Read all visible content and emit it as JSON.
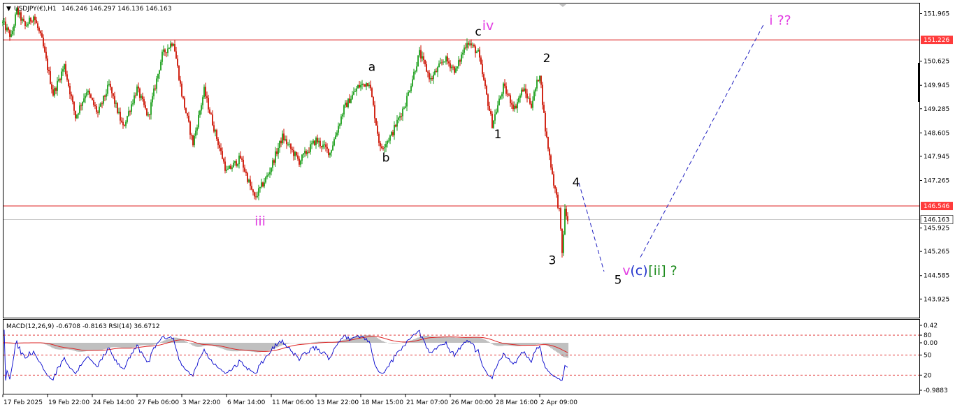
{
  "header": {
    "symbol_line": "USDJPY(€),H1",
    "ohlc": "146.246 146.297 146.136 146.163"
  },
  "indicator_header": "MACD(12,26,9) -0.6708 -0.8163 RSI(14) 36.6712",
  "colors": {
    "bull": "#1a9e1a",
    "bear": "#cc1100",
    "level_line": "#dd2222",
    "level_tag_bg": "#ff3b3b",
    "current_tag_bg": "#ffffff",
    "projection": "#1f1fc0",
    "label_magenta": "#e23de2",
    "label_black": "#000000",
    "label_blue": "#2233cc",
    "label_green": "#1e8b1e",
    "macd_hist": "#c0c0c0",
    "macd_signal": "#dd2222",
    "rsi_line": "#0000cc"
  },
  "chart_data": {
    "type": "candlestick",
    "symbol": "USDJPY",
    "timeframe": "H1",
    "price_axis": {
      "range": [
        143.4,
        152.25
      ],
      "ticks": [
        "151.965",
        "150.625",
        "149.945",
        "149.285",
        "148.605",
        "147.945",
        "147.265",
        "145.925",
        "145.265",
        "144.585",
        "143.925"
      ]
    },
    "time_axis": {
      "ticks": [
        "17 Feb 2025",
        "19 Feb 22:00",
        "24 Feb 14:00",
        "27 Feb 06:00",
        "3 Mar 22:00",
        "6 Mar 14:00",
        "11 Mar 06:00",
        "13 Mar 22:00",
        "18 Mar 15:00",
        "21 Mar 07:00",
        "26 Mar 00:00",
        "28 Mar 16:00",
        "2 Apr 09:00"
      ]
    },
    "price_path": [
      {
        "t": 0,
        "p": 151.7
      },
      {
        "t": 3,
        "p": 151.3
      },
      {
        "t": 5,
        "p": 152.05
      },
      {
        "t": 8,
        "p": 151.6
      },
      {
        "t": 11,
        "p": 151.9
      },
      {
        "t": 14,
        "p": 151.2
      },
      {
        "t": 18,
        "p": 149.7
      },
      {
        "t": 22,
        "p": 150.5
      },
      {
        "t": 26,
        "p": 149.05
      },
      {
        "t": 30,
        "p": 149.8
      },
      {
        "t": 34,
        "p": 149.15
      },
      {
        "t": 38,
        "p": 149.95
      },
      {
        "t": 43,
        "p": 148.75
      },
      {
        "t": 48,
        "p": 149.85
      },
      {
        "t": 52,
        "p": 149.05
      },
      {
        "t": 57,
        "p": 150.8
      },
      {
        "t": 61,
        "p": 151.2
      },
      {
        "t": 64,
        "p": 149.7
      },
      {
        "t": 68,
        "p": 148.3
      },
      {
        "t": 72,
        "p": 149.8
      },
      {
        "t": 76,
        "p": 148.6
      },
      {
        "t": 80,
        "p": 147.5
      },
      {
        "t": 85,
        "p": 147.9
      },
      {
        "t": 90,
        "p": 146.75
      },
      {
        "t": 95,
        "p": 147.45
      },
      {
        "t": 100,
        "p": 148.5
      },
      {
        "t": 106,
        "p": 147.8
      },
      {
        "t": 112,
        "p": 148.4
      },
      {
        "t": 117,
        "p": 148.05
      },
      {
        "t": 122,
        "p": 149.3
      },
      {
        "t": 127,
        "p": 149.9
      },
      {
        "t": 131,
        "p": 150.05
      },
      {
        "t": 135,
        "p": 148.15
      },
      {
        "t": 139,
        "p": 148.55
      },
      {
        "t": 144,
        "p": 149.45
      },
      {
        "t": 149,
        "p": 150.85
      },
      {
        "t": 153,
        "p": 150.1
      },
      {
        "t": 158,
        "p": 150.7
      },
      {
        "t": 162,
        "p": 150.35
      },
      {
        "t": 166,
        "p": 151.2
      },
      {
        "t": 170,
        "p": 150.85
      },
      {
        "t": 175,
        "p": 148.85
      },
      {
        "t": 179,
        "p": 149.9
      },
      {
        "t": 183,
        "p": 149.3
      },
      {
        "t": 186,
        "p": 149.85
      },
      {
        "t": 189,
        "p": 149.4
      },
      {
        "t": 192,
        "p": 150.3
      },
      {
        "t": 194,
        "p": 148.7
      },
      {
        "t": 197,
        "p": 147.2
      },
      {
        "t": 199,
        "p": 146.4
      },
      {
        "t": 200,
        "p": 145.2
      },
      {
        "t": 201,
        "p": 146.4
      },
      {
        "t": 202,
        "p": 146.16
      }
    ],
    "horizontal_levels": [
      {
        "value": 151.226,
        "label": "151.226"
      },
      {
        "value": 146.546,
        "label": "146.546"
      }
    ],
    "current_price": {
      "value": 146.163,
      "label": "146.163"
    },
    "projection_path": [
      {
        "t": 206,
        "p": 147.2
      },
      {
        "t": 215,
        "p": 144.7
      },
      {
        "t": 228,
        "p": 145.1
      },
      {
        "t": 272,
        "p": 151.65
      }
    ],
    "wave_labels": [
      {
        "text": "iii",
        "t": 92,
        "p": 146.0,
        "color": "label_magenta",
        "size": 19
      },
      {
        "text": "a",
        "t": 132,
        "p": 150.35,
        "color": "label_black",
        "size": 17
      },
      {
        "text": "b",
        "t": 137,
        "p": 147.8,
        "color": "label_black",
        "size": 17
      },
      {
        "text": "c",
        "t": 170,
        "p": 151.35,
        "color": "label_black",
        "size": 17
      },
      {
        "text": "iv",
        "t": 173.5,
        "p": 151.5,
        "color": "label_magenta",
        "size": 19
      },
      {
        "text": "1",
        "t": 177,
        "p": 148.45,
        "color": "label_black",
        "size": 17
      },
      {
        "text": "2",
        "t": 194.5,
        "p": 150.6,
        "color": "label_black",
        "size": 17
      },
      {
        "text": "3",
        "t": 196.5,
        "p": 144.9,
        "color": "label_black",
        "size": 17
      },
      {
        "text": "4",
        "t": 205,
        "p": 147.1,
        "color": "label_black",
        "size": 17
      },
      {
        "text": "5",
        "t": 220,
        "p": 144.35,
        "color": "label_black",
        "size": 17
      },
      {
        "text": "v",
        "t": 223,
        "p": 144.6,
        "color": "label_magenta",
        "size": 19
      },
      {
        "text": "(c)",
        "t": 227.5,
        "p": 144.6,
        "color": "label_blue",
        "size": 19
      },
      {
        "text": "[ii] ?",
        "t": 236,
        "p": 144.6,
        "color": "label_green",
        "size": 19
      },
      {
        "text": "i ??",
        "t": 278,
        "p": 151.65,
        "color": "label_magenta",
        "size": 19
      }
    ],
    "indicator": {
      "name": "MACD(12,26,9) + RSI(14)",
      "macd_main": -0.6708,
      "macd_signal": -0.8163,
      "rsi": 36.6712,
      "scale_ticks": [
        "0.42",
        "80",
        "0.00",
        "50",
        "20",
        "-0.9883"
      ],
      "rsi_levels": [
        80,
        50,
        20
      ]
    }
  }
}
